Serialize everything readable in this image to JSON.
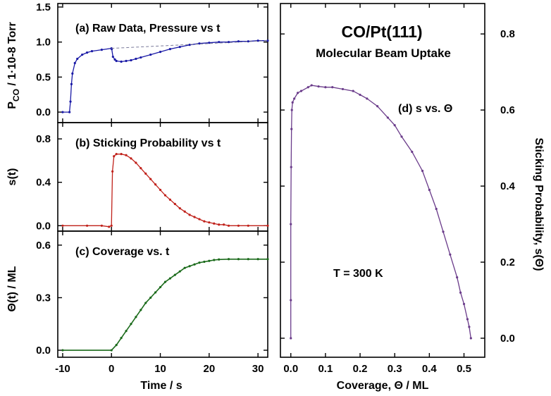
{
  "chart_data": [
    {
      "id": "a",
      "type": "scatter",
      "title": "(a) Raw Data, Pressure vs t",
      "ylabel": "P_CO / 1·10-8 Torr",
      "ylabel_main": "P",
      "ylabel_sub": "CO",
      "ylabel_rest": " / 1·10-8 Torr",
      "xlim": [
        -11,
        32
      ],
      "ylim": [
        -0.15,
        1.55
      ],
      "yticks": [
        0.0,
        0.5,
        1.0,
        1.5
      ],
      "ytick_labels": [
        "0.0",
        "0.5",
        "1.0",
        "1.5"
      ],
      "series": [
        {
          "color": "#1a1aa6",
          "x": [
            -10,
            -8.6,
            -8.4,
            -8.2,
            -8,
            -7.5,
            -7,
            -6,
            -5,
            -4,
            -2,
            0,
            0.05,
            0.3,
            0.7,
            1,
            2,
            3,
            4,
            5,
            6,
            8,
            10,
            12,
            14,
            16,
            18,
            20,
            22,
            24,
            26,
            28,
            30,
            32
          ],
          "y": [
            0.0,
            0.0,
            0.15,
            0.4,
            0.55,
            0.7,
            0.76,
            0.82,
            0.85,
            0.87,
            0.89,
            0.91,
            0.9,
            0.79,
            0.75,
            0.73,
            0.72,
            0.73,
            0.74,
            0.76,
            0.78,
            0.82,
            0.86,
            0.9,
            0.93,
            0.96,
            0.98,
            0.99,
            1.0,
            1.0,
            1.01,
            1.01,
            1.02,
            1.02
          ]
        },
        {
          "color": "#1a1aa6",
          "dashed": true,
          "x": [
            0,
            32
          ],
          "y": [
            0.91,
            1.02
          ]
        }
      ]
    },
    {
      "id": "b",
      "type": "scatter",
      "title": "(b) Sticking Probability vs t",
      "ylabel": "s(t)",
      "xlim": [
        -11,
        32
      ],
      "ylim": [
        -0.05,
        0.95
      ],
      "yticks": [
        0.0,
        0.4,
        0.8
      ],
      "ytick_labels": [
        "0.0",
        "0.4",
        "0.8"
      ],
      "series": [
        {
          "color": "#c0211a",
          "x": [
            -10,
            -5,
            -2,
            -0.5,
            0,
            0.2,
            0.5,
            1,
            2,
            3,
            4,
            5,
            6,
            7,
            8,
            9,
            10,
            11,
            12,
            13,
            14,
            15,
            16,
            17,
            18,
            19,
            20,
            21,
            22,
            23,
            24,
            26,
            28,
            32
          ],
          "y": [
            0.0,
            0.0,
            0.0,
            -0.01,
            0.0,
            0.5,
            0.64,
            0.66,
            0.66,
            0.65,
            0.62,
            0.58,
            0.53,
            0.48,
            0.43,
            0.38,
            0.33,
            0.28,
            0.24,
            0.2,
            0.16,
            0.13,
            0.1,
            0.08,
            0.06,
            0.04,
            0.03,
            0.02,
            0.01,
            0.01,
            0.0,
            0.0,
            0.0,
            0.0
          ]
        }
      ]
    },
    {
      "id": "c",
      "type": "line",
      "title": "(c) Coverage vs. t",
      "ylabel": "Θ(t) / ML",
      "xlabel": "Time / s",
      "xlim": [
        -11,
        32
      ],
      "ylim": [
        -0.04,
        0.68
      ],
      "xticks": [
        -10,
        0,
        10,
        20,
        30
      ],
      "xtick_labels": [
        "-10",
        "0",
        "10",
        "20",
        "30"
      ],
      "yticks": [
        0.0,
        0.3,
        0.6
      ],
      "ytick_labels": [
        "0.0",
        "0.3",
        "0.6"
      ],
      "series": [
        {
          "color": "#1a6a1a",
          "x": [
            -10,
            0,
            1,
            2,
            3,
            4,
            5,
            6,
            7,
            8,
            9,
            10,
            11,
            12,
            13,
            14,
            15,
            16,
            17,
            18,
            19,
            20,
            21,
            22,
            24,
            26,
            28,
            30,
            32
          ],
          "y": [
            0.0,
            0.0,
            0.03,
            0.07,
            0.11,
            0.15,
            0.19,
            0.23,
            0.27,
            0.3,
            0.33,
            0.36,
            0.39,
            0.41,
            0.43,
            0.45,
            0.47,
            0.48,
            0.49,
            0.5,
            0.505,
            0.51,
            0.515,
            0.518,
            0.52,
            0.52,
            0.52,
            0.52,
            0.52
          ]
        }
      ]
    },
    {
      "id": "d",
      "type": "scatter",
      "title": "CO/Pt(111)",
      "subtitle": "Molecular Beam Uptake",
      "annotation": "(d) s vs. Θ",
      "annotation2": "T = 300 K",
      "xlabel": "Coverage, Θ / ML",
      "ylabel": "Sticking Probability, s(Θ)",
      "xlim": [
        -0.03,
        0.56
      ],
      "ylim": [
        -0.05,
        0.88
      ],
      "xticks": [
        0.0,
        0.1,
        0.2,
        0.3,
        0.4,
        0.5
      ],
      "xtick_labels": [
        "0.0",
        "0.1",
        "0.2",
        "0.3",
        "0.4",
        "0.5"
      ],
      "yticks": [
        0.0,
        0.2,
        0.4,
        0.6,
        0.8
      ],
      "ytick_labels": [
        "0.0",
        "0.2",
        "0.4",
        "0.6",
        "0.8"
      ],
      "series": [
        {
          "color": "#6a3b8a",
          "x": [
            0.0,
            0.0,
            0.0,
            0.001,
            0.002,
            0.003,
            0.005,
            0.01,
            0.02,
            0.03,
            0.05,
            0.06,
            0.08,
            0.1,
            0.12,
            0.15,
            0.18,
            0.2,
            0.22,
            0.25,
            0.28,
            0.3,
            0.32,
            0.35,
            0.38,
            0.4,
            0.42,
            0.44,
            0.46,
            0.48,
            0.49,
            0.5,
            0.51,
            0.515,
            0.52
          ],
          "y": [
            0.0,
            0.1,
            0.3,
            0.45,
            0.55,
            0.6,
            0.62,
            0.63,
            0.645,
            0.65,
            0.66,
            0.665,
            0.662,
            0.66,
            0.66,
            0.655,
            0.65,
            0.64,
            0.63,
            0.61,
            0.58,
            0.56,
            0.53,
            0.49,
            0.44,
            0.39,
            0.34,
            0.28,
            0.22,
            0.16,
            0.12,
            0.09,
            0.05,
            0.03,
            0.0
          ]
        }
      ]
    }
  ]
}
